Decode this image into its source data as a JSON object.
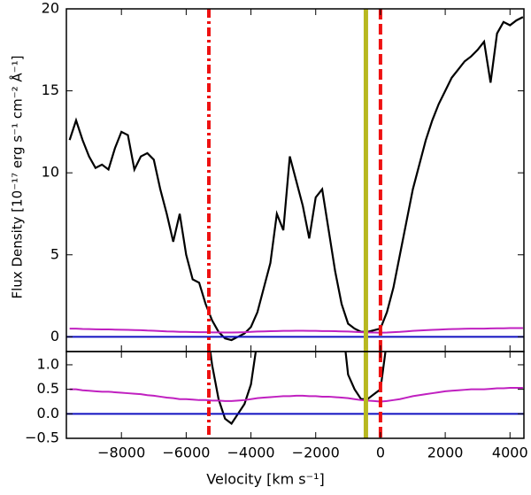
{
  "chart_data": {
    "type": "line",
    "x_label": "Velocity [km s⁻¹]",
    "y_label": "Flux Density [10⁻¹⁷ erg s⁻¹ cm⁻² Å⁻¹]",
    "x": [
      -9600,
      -9400,
      -9200,
      -9000,
      -8800,
      -8600,
      -8400,
      -8200,
      -8000,
      -7800,
      -7600,
      -7400,
      -7200,
      -7000,
      -6800,
      -6600,
      -6400,
      -6200,
      -6000,
      -5800,
      -5600,
      -5400,
      -5200,
      -5000,
      -4800,
      -4600,
      -4400,
      -4200,
      -4000,
      -3800,
      -3600,
      -3400,
      -3200,
      -3000,
      -2800,
      -2600,
      -2400,
      -2200,
      -2000,
      -1800,
      -1600,
      -1400,
      -1200,
      -1000,
      -800,
      -600,
      -400,
      -200,
      0,
      200,
      400,
      600,
      800,
      1000,
      1200,
      1400,
      1600,
      1800,
      2000,
      2200,
      2400,
      2600,
      2800,
      3000,
      3200,
      3400,
      3600,
      3800,
      4000,
      4200,
      4400
    ],
    "series": [
      {
        "color": "#000000",
        "values": [
          12.0,
          13.2,
          12.0,
          11.0,
          10.3,
          10.5,
          10.2,
          11.5,
          12.5,
          12.3,
          10.2,
          11.0,
          11.2,
          10.8,
          9.0,
          7.5,
          5.8,
          7.5,
          5.0,
          3.5,
          3.3,
          2.0,
          1.0,
          0.3,
          -0.1,
          -0.2,
          0.0,
          0.2,
          0.6,
          1.5,
          3.0,
          4.5,
          7.5,
          6.5,
          11.0,
          9.5,
          8.0,
          6.0,
          8.5,
          9.0,
          6.5,
          4.0,
          2.0,
          0.8,
          0.5,
          0.3,
          0.3,
          0.4,
          0.5,
          1.5,
          3.0,
          5.0,
          7.0,
          9.0,
          10.5,
          12.0,
          13.2,
          14.2,
          15.0,
          15.8,
          16.3,
          16.8,
          17.1,
          17.5,
          18.0,
          15.5,
          18.5,
          19.2,
          19.0,
          19.3,
          19.5
        ]
      },
      {
        "color": "#c020c0",
        "values": [
          0.5,
          0.5,
          0.48,
          0.47,
          0.46,
          0.45,
          0.45,
          0.44,
          0.43,
          0.42,
          0.41,
          0.4,
          0.38,
          0.37,
          0.35,
          0.33,
          0.32,
          0.3,
          0.3,
          0.29,
          0.28,
          0.28,
          0.27,
          0.27,
          0.26,
          0.26,
          0.27,
          0.28,
          0.3,
          0.32,
          0.33,
          0.34,
          0.35,
          0.36,
          0.36,
          0.37,
          0.37,
          0.36,
          0.36,
          0.35,
          0.35,
          0.34,
          0.33,
          0.32,
          0.3,
          0.28,
          0.27,
          0.26,
          0.25,
          0.26,
          0.28,
          0.3,
          0.33,
          0.36,
          0.38,
          0.4,
          0.42,
          0.44,
          0.46,
          0.47,
          0.48,
          0.49,
          0.5,
          0.5,
          0.5,
          0.51,
          0.52,
          0.52,
          0.53,
          0.53,
          0.53
        ]
      }
    ],
    "hline": {
      "value": 0,
      "color": "#1010c0"
    },
    "vlines": [
      {
        "value": -5300,
        "color": "#ee1111",
        "style": "dashdot"
      },
      {
        "value": -450,
        "color": "#b8b820",
        "style": "solid"
      },
      {
        "value": 0,
        "color": "#ee1111",
        "style": "dashed"
      }
    ],
    "xlim": [
      -9700,
      4430
    ],
    "xticks": [
      {
        "value": -8000,
        "label": "−8000"
      },
      {
        "value": -6000,
        "label": "−6000"
      },
      {
        "value": -4000,
        "label": "−4000"
      },
      {
        "value": -2000,
        "label": "−2000"
      },
      0,
      2000,
      4000
    ],
    "ylim": [
      -0.9,
      20
    ],
    "yticks": [
      0,
      5,
      10,
      15,
      20
    ],
    "ylim_zoom": [
      -0.5,
      1.27
    ],
    "yticks_zoom": [
      {
        "value": -0.5,
        "label": "−0.5"
      },
      {
        "value": 0,
        "label": "0.0"
      },
      {
        "value": 0.5,
        "label": "0.5"
      },
      {
        "value": 1,
        "label": "1.0"
      }
    ]
  }
}
